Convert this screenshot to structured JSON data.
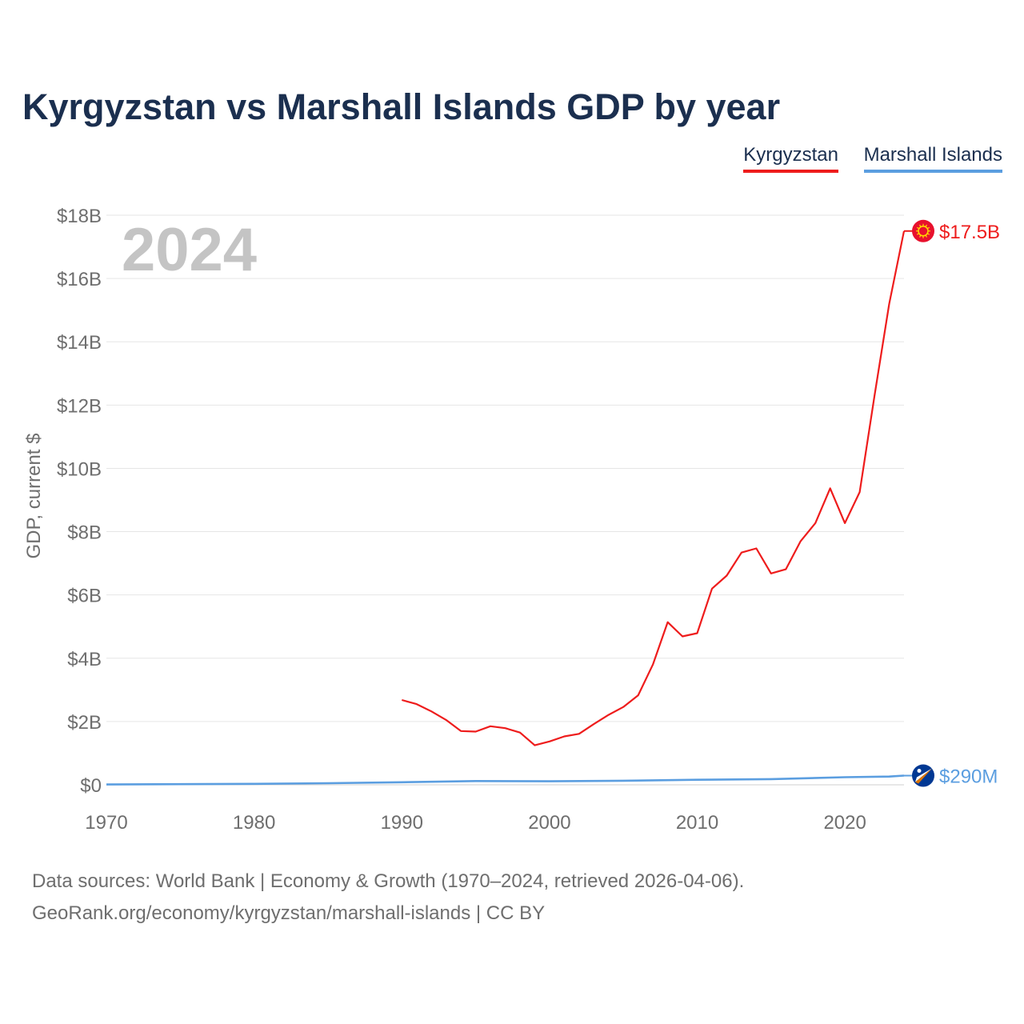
{
  "title": "Kyrgyzstan vs Marshall Islands GDP by year",
  "legend": [
    {
      "label": "Kyrgyzstan",
      "color": "#ee1c1c"
    },
    {
      "label": "Marshall Islands",
      "color": "#5b9ee0"
    }
  ],
  "footer": {
    "sources": "Data sources: World Bank | Economy & Growth (1970–2024, retrieved 2026-04-06).",
    "attribution": "GeoRank.org/economy/kyrgyzstan/marshall-islands | CC BY"
  },
  "chart_data": {
    "type": "line",
    "title": "Kyrgyzstan vs Marshall Islands GDP by year",
    "year_label": "2024",
    "xlabel": "",
    "ylabel": "GDP, current $",
    "xlim": [
      1970,
      2024
    ],
    "ylim": [
      0,
      18
    ],
    "y_unit": "billions USD",
    "x_ticks": [
      1970,
      1980,
      1990,
      2000,
      2010,
      2020
    ],
    "y_ticks": [
      0,
      2,
      4,
      6,
      8,
      10,
      12,
      14,
      16,
      18
    ],
    "y_tick_labels": [
      "$0",
      "$2B",
      "$4B",
      "$6B",
      "$8B",
      "$10B",
      "$12B",
      "$14B",
      "$16B",
      "$18B"
    ],
    "grid": true,
    "series": [
      {
        "name": "Kyrgyzstan",
        "color": "#ee1c1c",
        "end_label": "$17.5B",
        "flag_icon": "kyrgyzstan-flag-icon",
        "x": [
          1990,
          1991,
          1992,
          1993,
          1994,
          1995,
          1996,
          1997,
          1998,
          1999,
          2000,
          2001,
          2002,
          2003,
          2004,
          2005,
          2006,
          2007,
          2008,
          2009,
          2010,
          2011,
          2012,
          2013,
          2014,
          2015,
          2016,
          2017,
          2018,
          2019,
          2020,
          2021,
          2022,
          2023,
          2024
        ],
        "values": [
          2.68,
          2.55,
          2.32,
          2.05,
          1.7,
          1.68,
          1.85,
          1.79,
          1.65,
          1.25,
          1.37,
          1.53,
          1.61,
          1.92,
          2.21,
          2.46,
          2.83,
          3.8,
          5.14,
          4.69,
          4.79,
          6.2,
          6.61,
          7.34,
          7.47,
          6.68,
          6.81,
          7.7,
          8.27,
          9.37,
          8.27,
          9.25,
          12.29,
          15.2,
          17.5
        ]
      },
      {
        "name": "Marshall Islands",
        "color": "#5b9ee0",
        "end_label": "$290M",
        "flag_icon": "marshall-islands-flag-icon",
        "x": [
          1970,
          1975,
          1980,
          1985,
          1990,
          1995,
          2000,
          2005,
          2010,
          2015,
          2020,
          2023,
          2024
        ],
        "values": [
          0.01,
          0.02,
          0.03,
          0.05,
          0.08,
          0.12,
          0.11,
          0.13,
          0.16,
          0.18,
          0.24,
          0.26,
          0.29
        ]
      }
    ]
  }
}
